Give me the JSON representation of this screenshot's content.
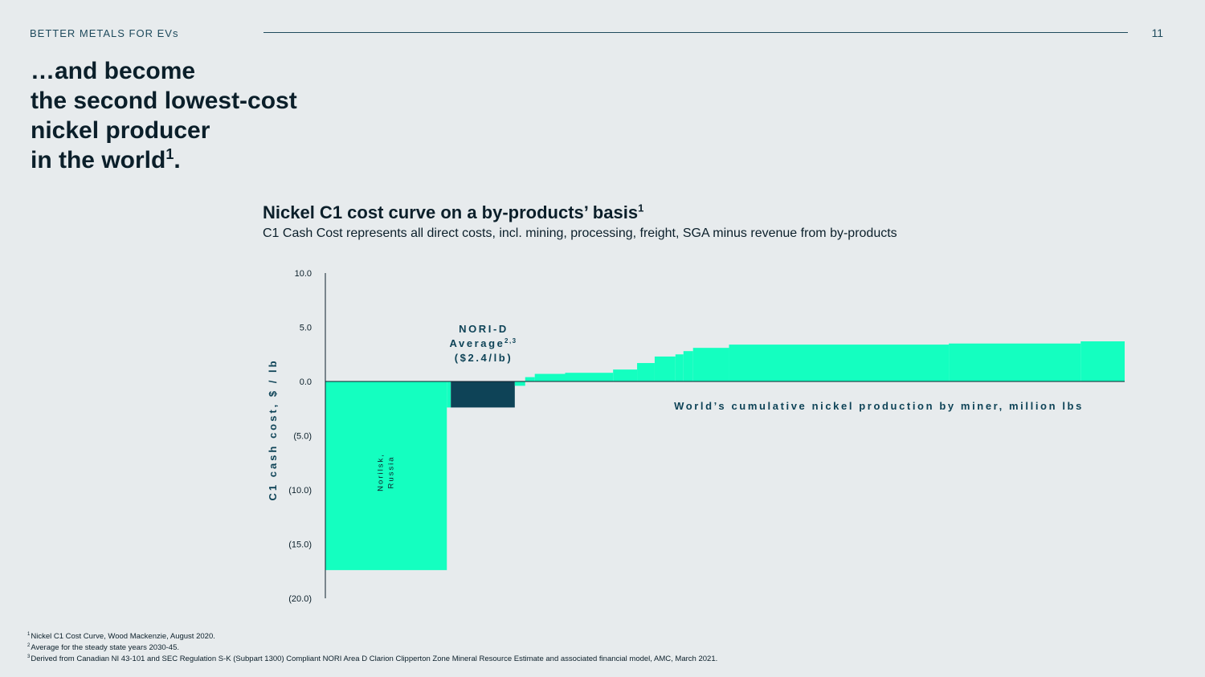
{
  "header": {
    "section_label": "BETTER METALS FOR EVs",
    "page_number": "11"
  },
  "headline": {
    "lines": [
      "…and become",
      "the second lowest-cost",
      "nickel producer",
      "in the world"
    ],
    "last_line_sup": "1",
    "last_line_suffix": "."
  },
  "colors": {
    "background": "#e7ebed",
    "accent": "#14ffc0",
    "nori": "#0e4357",
    "text": "#0b1f2a"
  },
  "chart_data": {
    "type": "bar",
    "title": "Nickel C1 cost curve on a by-products’ basis",
    "title_sup": "1",
    "subtitle": "C1 Cash Cost represents all direct costs, incl. mining, processing, freight, SGA minus revenue from by-products",
    "ylabel": "C1 cash cost, $ / lb",
    "xlabel": "World’s cumulative nickel production by miner, million lbs",
    "ylim": [
      -20,
      10
    ],
    "yticks": [
      "10.0",
      "5.0",
      "0.0",
      "(5.0)",
      "(10.0)",
      "(15.0)",
      "(20.0)"
    ],
    "ytick_values": [
      10,
      5,
      0,
      -5,
      -10,
      -15,
      -20
    ],
    "x_unit_total": 1000,
    "miners": [
      {
        "x0": 0,
        "x1": 152,
        "value": -17.4,
        "label": "Norilsk, Russia"
      },
      {
        "x0": 152,
        "x1": 157,
        "value": -2.4
      },
      {
        "x0": 157,
        "x1": 237,
        "value": -2.4,
        "highlight": true
      },
      {
        "x0": 237,
        "x1": 250,
        "value": -0.4
      },
      {
        "x0": 250,
        "x1": 262,
        "value": 0.4
      },
      {
        "x0": 262,
        "x1": 300,
        "value": 0.7
      },
      {
        "x0": 300,
        "x1": 360,
        "value": 0.8
      },
      {
        "x0": 360,
        "x1": 390,
        "value": 1.1
      },
      {
        "x0": 390,
        "x1": 412,
        "value": 1.7
      },
      {
        "x0": 412,
        "x1": 438,
        "value": 2.3
      },
      {
        "x0": 438,
        "x1": 448,
        "value": 2.5
      },
      {
        "x0": 448,
        "x1": 460,
        "value": 2.8
      },
      {
        "x0": 460,
        "x1": 505,
        "value": 3.1
      },
      {
        "x0": 505,
        "x1": 780,
        "value": 3.4
      },
      {
        "x0": 780,
        "x1": 945,
        "value": 3.5
      },
      {
        "x0": 945,
        "x1": 1000,
        "value": 3.7
      }
    ],
    "nori_label": {
      "line1": "NORI-D",
      "line2": "Average",
      "line2_sup": "2,3",
      "line3": "($2.4/lb)"
    }
  },
  "footnotes": [
    {
      "num": "1",
      "text": "Nickel C1 Cost Curve, Wood Mackenzie, August 2020."
    },
    {
      "num": "2",
      "text": "Average for the steady state years 2030-45."
    },
    {
      "num": "3",
      "text": "Derived from Canadian NI 43-101 and SEC Regulation S-K (Subpart 1300) Compliant NORI Area D Clarion Clipperton Zone Mineral Resource Estimate and associated financial model, AMC, March 2021."
    }
  ]
}
